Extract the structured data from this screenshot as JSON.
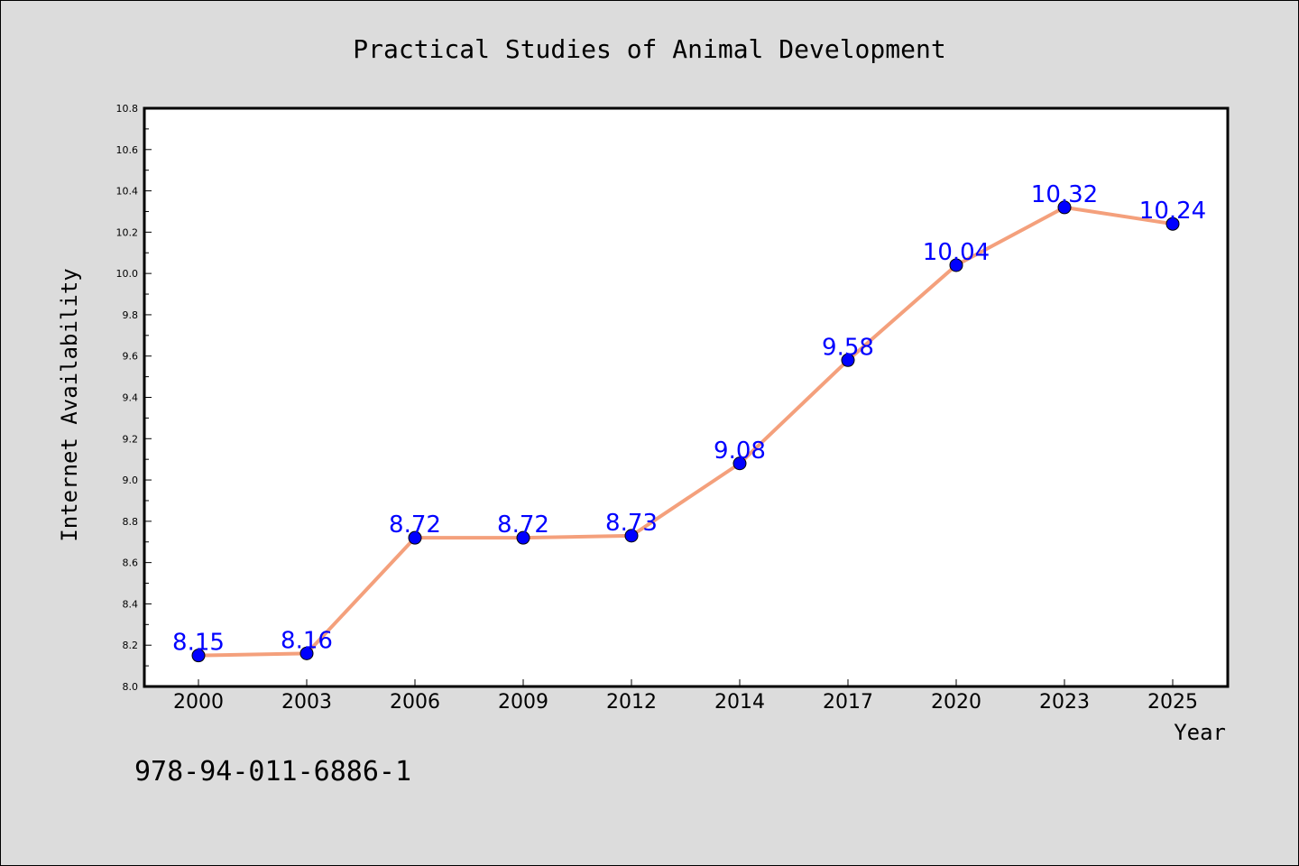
{
  "chart_data": {
    "type": "line",
    "title": "Practical Studies of Animal Development",
    "xlabel": "Year",
    "ylabel": "Internet Availability",
    "x": [
      "2000",
      "2003",
      "2006",
      "2009",
      "2012",
      "2014",
      "2017",
      "2020",
      "2023",
      "2025"
    ],
    "series": [
      {
        "values": [
          8.15,
          8.16,
          8.72,
          8.72,
          8.73,
          9.08,
          9.58,
          10.04,
          10.32,
          10.24
        ],
        "line_color": "#f4a07c",
        "marker_color": "#0000ff"
      }
    ],
    "data_labels": [
      "8.15",
      "8.16",
      "8.72",
      "8.72",
      "8.73",
      "9.08",
      "9.58",
      "10.04",
      "10.32",
      "10.24"
    ],
    "ylim": [
      8.0,
      10.8
    ],
    "yticks": [
      "8.0",
      "8.2",
      "8.4",
      "8.6",
      "8.8",
      "9.0",
      "9.2",
      "9.4",
      "9.6",
      "9.8",
      "10.0",
      "10.2",
      "10.4",
      "10.6",
      "10.8"
    ],
    "grid": false,
    "legend": "none"
  },
  "annotation": {
    "isbn": "978-94-011-6886-1"
  },
  "colors": {
    "background": "#dcdcdc",
    "plot_background": "#ffffff",
    "data_label": "#0000ff"
  }
}
